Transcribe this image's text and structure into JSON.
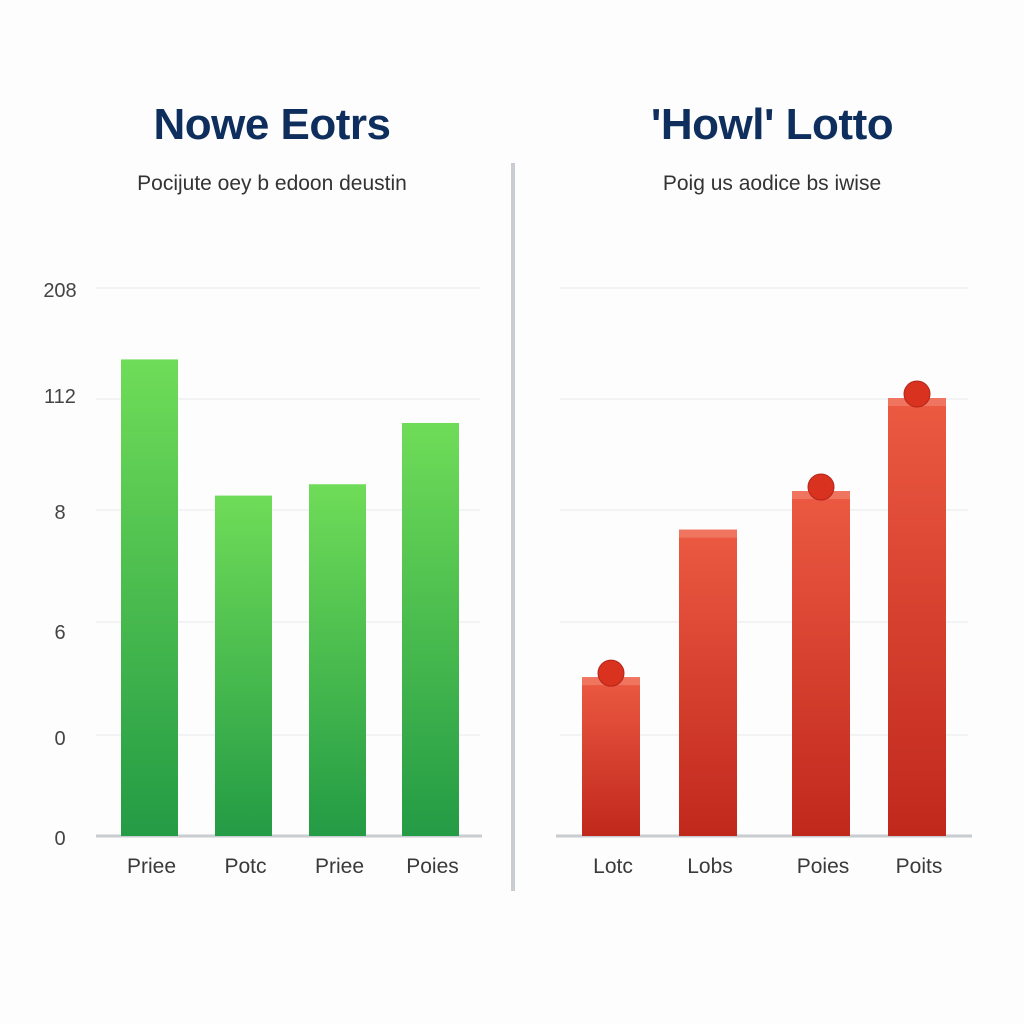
{
  "charts": {
    "left": {
      "title": "Nowe Eotrs",
      "subtitle": "Pocijute oey b edoon deustin"
    },
    "right": {
      "title": "'Howl' Lotto",
      "subtitle": "Poig us aodice bs iwise"
    }
  },
  "colors": {
    "green_top": "#6fdc58",
    "green_bottom": "#249b45",
    "red_top": "#ec5a42",
    "red_bottom": "#c0281c",
    "title": "#0e2f5e",
    "grid": "#e7e9ec",
    "axis": "#c9ccd0"
  },
  "chart_data": [
    {
      "type": "bar",
      "title": "Nowe Eotrs",
      "subtitle": "Pocijute oey b edoon deustin",
      "categories": [
        "Priee",
        "Potc",
        "Priee",
        "Poies"
      ],
      "values": [
        210,
        150,
        155,
        182
      ],
      "y_ticks": [
        "208",
        "112",
        "8",
        "6",
        "0",
        "0"
      ],
      "ylim": [
        0,
        245
      ],
      "grid": true,
      "legend": "none",
      "color": "green"
    },
    {
      "type": "bar",
      "title": "'Howl' Lotto",
      "subtitle": "Poig us aodice bs iwise",
      "categories": [
        "Lotc",
        "Lobs",
        "Poies",
        "Poits"
      ],
      "values": [
        70,
        135,
        152,
        193
      ],
      "markers": [
        true,
        false,
        true,
        true
      ],
      "ylim": [
        0,
        245
      ],
      "grid": true,
      "legend": "none",
      "color": "red"
    }
  ]
}
